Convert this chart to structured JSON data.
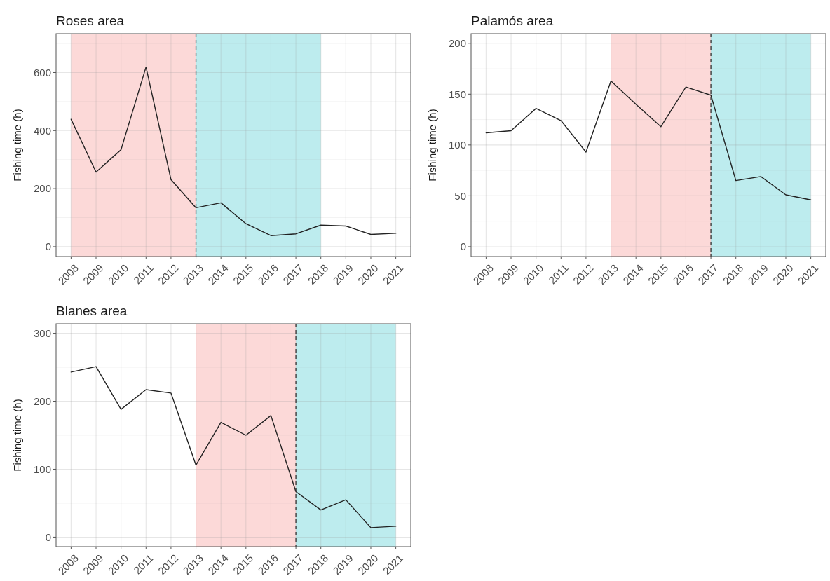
{
  "chart_data": [
    {
      "type": "line",
      "title": "Roses area",
      "ylabel": "Fishing time (h)",
      "x": [
        2008,
        2009,
        2010,
        2011,
        2012,
        2013,
        2014,
        2015,
        2016,
        2017,
        2018,
        2019,
        2020,
        2021
      ],
      "series": [
        {
          "color": "#222222",
          "values": [
            439,
            257,
            334,
            619,
            231,
            134,
            151,
            79,
            38,
            44,
            74,
            71,
            42,
            46
          ]
        }
      ],
      "xlim": [
        2007.4,
        2021.6
      ],
      "xticks": [
        2008,
        2009,
        2010,
        2011,
        2012,
        2013,
        2014,
        2015,
        2016,
        2017,
        2018,
        2019,
        2020,
        2021
      ],
      "ylim": [
        -34,
        734
      ],
      "yticks": [
        0,
        {
          "value": 100,
          "label": null
        },
        200,
        {
          "value": 300,
          "label": null
        },
        400,
        {
          "value": 500,
          "label": null
        },
        600,
        {
          "value": 700,
          "label": null
        }
      ],
      "grid": true,
      "line_style": "solid",
      "bands": [
        {
          "axis": "x",
          "from": 2008,
          "to": 2013,
          "color": "#fcd9d8"
        },
        {
          "axis": "x",
          "from": 2013,
          "to": 2018,
          "color": "#bdecee"
        }
      ],
      "ref_lines": [
        {
          "axis": "x",
          "value": 2013,
          "color": "#333333",
          "line_style": "dashed"
        }
      ]
    },
    {
      "type": "line",
      "title": "Palamós area",
      "ylabel": "Fishing time (h)",
      "x": [
        2008,
        2009,
        2010,
        2011,
        2012,
        2013,
        2014,
        2015,
        2016,
        2017,
        2018,
        2019,
        2020,
        2021
      ],
      "series": [
        {
          "color": "#222222",
          "values": [
            112,
            114,
            136,
            124,
            93,
            163,
            140,
            118,
            157,
            149,
            65,
            69,
            51,
            46
          ]
        }
      ],
      "xlim": [
        2007.4,
        2021.6
      ],
      "xticks": [
        2008,
        2009,
        2010,
        2011,
        2012,
        2013,
        2014,
        2015,
        2016,
        2017,
        2018,
        2019,
        2020,
        2021
      ],
      "ylim": [
        -9.7,
        209.5
      ],
      "yticks": [
        0,
        {
          "value": 25,
          "label": null
        },
        50,
        {
          "value": 75,
          "label": null
        },
        100,
        {
          "value": 125,
          "label": null
        },
        150,
        {
          "value": 175,
          "label": null
        },
        200
      ],
      "grid": true,
      "line_style": "solid",
      "bands": [
        {
          "axis": "x",
          "from": 2013,
          "to": 2017,
          "color": "#fcd9d8"
        },
        {
          "axis": "x",
          "from": 2017,
          "to": 2021,
          "color": "#bdecee"
        }
      ],
      "ref_lines": [
        {
          "axis": "x",
          "value": 2017,
          "color": "#333333",
          "line_style": "dashed"
        }
      ]
    },
    {
      "type": "line",
      "title": "Blanes area",
      "ylabel": "Fishing time (h)",
      "x": [
        2008,
        2009,
        2010,
        2011,
        2012,
        2013,
        2014,
        2015,
        2016,
        2017,
        2018,
        2019,
        2020,
        2021
      ],
      "series": [
        {
          "color": "#222222",
          "values": [
            243,
            251,
            188,
            217,
            212,
            106,
            169,
            150,
            179,
            67,
            40,
            55,
            14,
            16
          ]
        }
      ],
      "xlim": [
        2007.4,
        2021.6
      ],
      "xticks": [
        2008,
        2009,
        2010,
        2011,
        2012,
        2013,
        2014,
        2015,
        2016,
        2017,
        2018,
        2019,
        2020,
        2021
      ],
      "ylim": [
        -14,
        314
      ],
      "yticks": [
        0,
        {
          "value": 50,
          "label": null
        },
        100,
        {
          "value": 150,
          "label": null
        },
        200,
        {
          "value": 250,
          "label": null
        },
        300
      ],
      "grid": true,
      "line_style": "solid",
      "bands": [
        {
          "axis": "x",
          "from": 2013,
          "to": 2017,
          "color": "#fcd9d8"
        },
        {
          "axis": "x",
          "from": 2017,
          "to": 2021,
          "color": "#bdecee"
        }
      ],
      "ref_lines": [
        {
          "axis": "x",
          "value": 2017,
          "color": "#333333",
          "line_style": "dashed"
        }
      ]
    }
  ]
}
